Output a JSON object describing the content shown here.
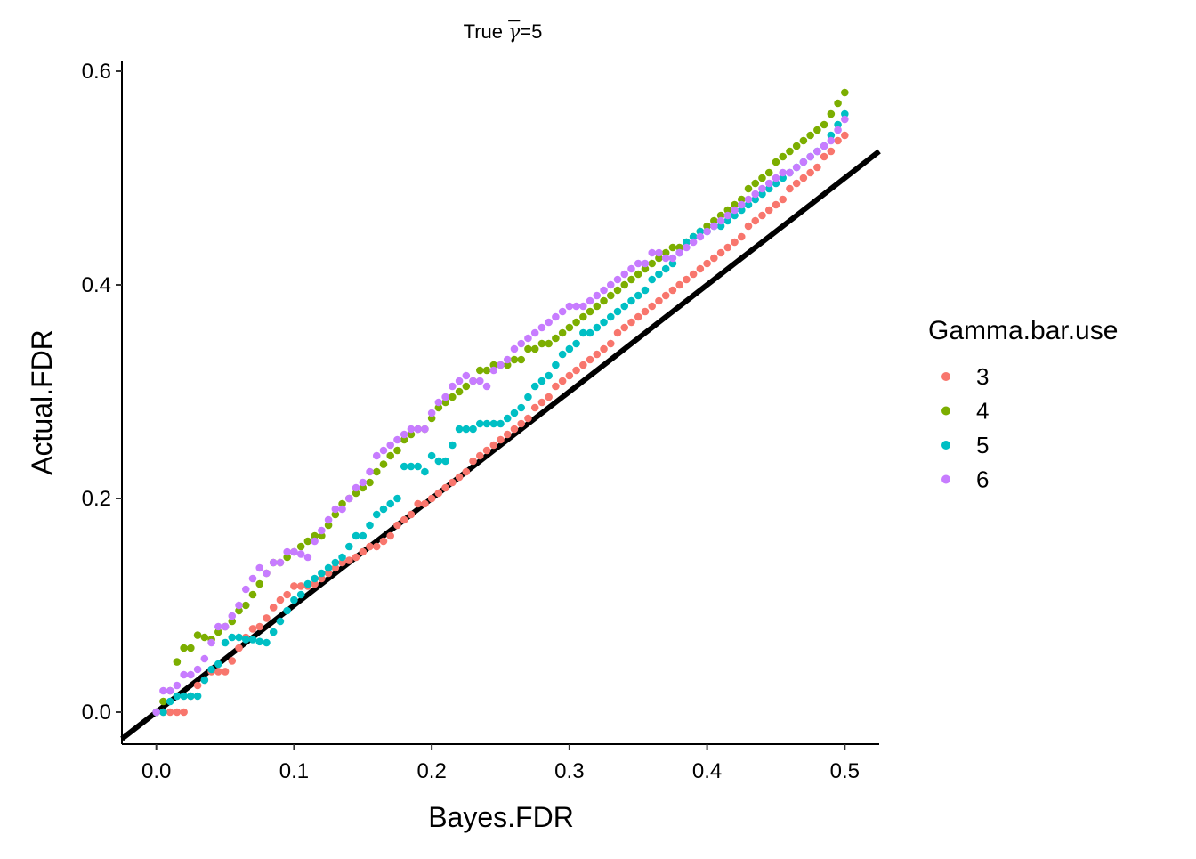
{
  "chart_data": {
    "type": "scatter",
    "title_prefix": "True ",
    "title_symbol": "γ",
    "title_suffix": "=5",
    "xlabel": "Bayes.FDR",
    "ylabel": "Actual.FDR",
    "xlim": [
      -0.025,
      0.525
    ],
    "ylim": [
      -0.03,
      0.61
    ],
    "x_ticks": [
      "0.0",
      "0.1",
      "0.2",
      "0.3",
      "0.4",
      "0.5"
    ],
    "y_ticks": [
      "0.0",
      "0.2",
      "0.4",
      "0.6"
    ],
    "grid": false,
    "legend": {
      "title": "Gamma.bar.use",
      "position": "right"
    },
    "reference_line": {
      "slope": 1,
      "intercept": 0,
      "color": "#000000"
    },
    "series": [
      {
        "name": "3",
        "color": "#F8766D",
        "x": [
          0,
          0.005,
          0.01,
          0.015,
          0.02,
          0.025,
          0.03,
          0.035,
          0.04,
          0.045,
          0.05,
          0.055,
          0.06,
          0.065,
          0.07,
          0.075,
          0.08,
          0.085,
          0.09,
          0.095,
          0.1,
          0.105,
          0.11,
          0.115,
          0.12,
          0.125,
          0.13,
          0.135,
          0.14,
          0.145,
          0.15,
          0.155,
          0.16,
          0.165,
          0.17,
          0.175,
          0.18,
          0.185,
          0.19,
          0.195,
          0.2,
          0.205,
          0.21,
          0.215,
          0.22,
          0.225,
          0.23,
          0.235,
          0.24,
          0.245,
          0.25,
          0.255,
          0.26,
          0.265,
          0.27,
          0.275,
          0.28,
          0.285,
          0.29,
          0.295,
          0.3,
          0.305,
          0.31,
          0.315,
          0.32,
          0.325,
          0.33,
          0.335,
          0.34,
          0.345,
          0.35,
          0.355,
          0.36,
          0.365,
          0.37,
          0.375,
          0.38,
          0.385,
          0.39,
          0.395,
          0.4,
          0.405,
          0.41,
          0.415,
          0.42,
          0.425,
          0.43,
          0.435,
          0.44,
          0.445,
          0.45,
          0.455,
          0.46,
          0.465,
          0.47,
          0.475,
          0.48,
          0.485,
          0.49,
          0.495,
          0.5
        ],
        "y": [
          0,
          0,
          0,
          0,
          0,
          0.015,
          0.025,
          0.03,
          0.038,
          0.038,
          0.038,
          0.048,
          0.06,
          0.07,
          0.078,
          0.08,
          0.088,
          0.098,
          0.105,
          0.11,
          0.118,
          0.118,
          0.118,
          0.12,
          0.125,
          0.13,
          0.135,
          0.14,
          0.142,
          0.145,
          0.15,
          0.155,
          0.155,
          0.16,
          0.165,
          0.175,
          0.18,
          0.185,
          0.195,
          0.195,
          0.2,
          0.205,
          0.21,
          0.215,
          0.22,
          0.225,
          0.235,
          0.24,
          0.245,
          0.25,
          0.255,
          0.26,
          0.265,
          0.27,
          0.275,
          0.285,
          0.29,
          0.295,
          0.305,
          0.31,
          0.315,
          0.32,
          0.325,
          0.33,
          0.335,
          0.34,
          0.345,
          0.355,
          0.36,
          0.365,
          0.37,
          0.375,
          0.38,
          0.385,
          0.39,
          0.395,
          0.4,
          0.405,
          0.41,
          0.415,
          0.42,
          0.425,
          0.43,
          0.435,
          0.44,
          0.445,
          0.455,
          0.46,
          0.465,
          0.47,
          0.475,
          0.48,
          0.49,
          0.495,
          0.5,
          0.505,
          0.51,
          0.52,
          0.525,
          0.535,
          0.54
        ]
      },
      {
        "name": "4",
        "color": "#7CAE00",
        "x": [
          0,
          0.005,
          0.01,
          0.015,
          0.02,
          0.025,
          0.03,
          0.035,
          0.04,
          0.045,
          0.05,
          0.055,
          0.06,
          0.065,
          0.07,
          0.075,
          0.08,
          0.085,
          0.09,
          0.095,
          0.1,
          0.105,
          0.11,
          0.115,
          0.12,
          0.125,
          0.13,
          0.135,
          0.14,
          0.145,
          0.15,
          0.155,
          0.16,
          0.165,
          0.17,
          0.175,
          0.18,
          0.185,
          0.19,
          0.195,
          0.2,
          0.205,
          0.21,
          0.215,
          0.22,
          0.225,
          0.23,
          0.235,
          0.24,
          0.245,
          0.25,
          0.255,
          0.26,
          0.265,
          0.27,
          0.275,
          0.28,
          0.285,
          0.29,
          0.295,
          0.3,
          0.305,
          0.31,
          0.315,
          0.32,
          0.325,
          0.33,
          0.335,
          0.34,
          0.345,
          0.35,
          0.355,
          0.36,
          0.365,
          0.37,
          0.375,
          0.38,
          0.385,
          0.39,
          0.395,
          0.4,
          0.405,
          0.41,
          0.415,
          0.42,
          0.425,
          0.43,
          0.435,
          0.44,
          0.445,
          0.45,
          0.455,
          0.46,
          0.465,
          0.47,
          0.475,
          0.48,
          0.485,
          0.49,
          0.495,
          0.5
        ],
        "y": [
          0,
          0.01,
          0.02,
          0.047,
          0.06,
          0.06,
          0.072,
          0.07,
          0.068,
          0.075,
          0.08,
          0.085,
          0.095,
          0.1,
          0.11,
          0.12,
          0.13,
          0.14,
          0.14,
          0.145,
          0.15,
          0.155,
          0.16,
          0.165,
          0.165,
          0.175,
          0.185,
          0.195,
          0.2,
          0.205,
          0.21,
          0.215,
          0.225,
          0.232,
          0.24,
          0.245,
          0.255,
          0.26,
          0.265,
          0.265,
          0.275,
          0.285,
          0.29,
          0.295,
          0.3,
          0.305,
          0.31,
          0.32,
          0.32,
          0.325,
          0.325,
          0.325,
          0.33,
          0.33,
          0.34,
          0.34,
          0.345,
          0.345,
          0.35,
          0.355,
          0.36,
          0.365,
          0.37,
          0.375,
          0.38,
          0.385,
          0.39,
          0.395,
          0.4,
          0.405,
          0.41,
          0.415,
          0.42,
          0.425,
          0.43,
          0.435,
          0.435,
          0.44,
          0.445,
          0.45,
          0.455,
          0.46,
          0.465,
          0.47,
          0.475,
          0.48,
          0.49,
          0.495,
          0.5,
          0.505,
          0.515,
          0.52,
          0.525,
          0.53,
          0.535,
          0.54,
          0.545,
          0.55,
          0.56,
          0.57,
          0.58
        ]
      },
      {
        "name": "5",
        "color": "#00BFC4",
        "x": [
          0,
          0.005,
          0.01,
          0.015,
          0.02,
          0.025,
          0.03,
          0.035,
          0.04,
          0.045,
          0.05,
          0.055,
          0.06,
          0.065,
          0.07,
          0.075,
          0.08,
          0.085,
          0.09,
          0.095,
          0.1,
          0.105,
          0.11,
          0.115,
          0.12,
          0.125,
          0.13,
          0.135,
          0.14,
          0.145,
          0.15,
          0.155,
          0.16,
          0.165,
          0.17,
          0.175,
          0.18,
          0.185,
          0.19,
          0.195,
          0.2,
          0.205,
          0.21,
          0.215,
          0.22,
          0.225,
          0.23,
          0.235,
          0.24,
          0.245,
          0.25,
          0.255,
          0.26,
          0.265,
          0.27,
          0.275,
          0.28,
          0.285,
          0.29,
          0.295,
          0.3,
          0.305,
          0.31,
          0.315,
          0.32,
          0.325,
          0.33,
          0.335,
          0.34,
          0.345,
          0.35,
          0.355,
          0.36,
          0.365,
          0.37,
          0.375,
          0.38,
          0.385,
          0.39,
          0.395,
          0.4,
          0.405,
          0.41,
          0.415,
          0.42,
          0.425,
          0.43,
          0.435,
          0.44,
          0.445,
          0.45,
          0.455,
          0.46,
          0.465,
          0.47,
          0.475,
          0.48,
          0.485,
          0.49,
          0.495,
          0.5
        ],
        "y": [
          0,
          0,
          0.01,
          0.015,
          0.015,
          0.015,
          0.015,
          0.03,
          0.04,
          0.045,
          0.065,
          0.07,
          0.07,
          0.068,
          0.068,
          0.066,
          0.065,
          0.075,
          0.085,
          0.095,
          0.105,
          0.11,
          0.12,
          0.125,
          0.13,
          0.135,
          0.14,
          0.145,
          0.155,
          0.165,
          0.165,
          0.175,
          0.185,
          0.19,
          0.195,
          0.2,
          0.23,
          0.23,
          0.23,
          0.225,
          0.24,
          0.235,
          0.235,
          0.25,
          0.265,
          0.265,
          0.265,
          0.27,
          0.27,
          0.27,
          0.27,
          0.275,
          0.28,
          0.285,
          0.295,
          0.305,
          0.31,
          0.315,
          0.325,
          0.335,
          0.34,
          0.345,
          0.355,
          0.355,
          0.36,
          0.365,
          0.37,
          0.375,
          0.38,
          0.385,
          0.39,
          0.395,
          0.405,
          0.41,
          0.415,
          0.42,
          0.43,
          0.44,
          0.445,
          0.45,
          0.45,
          0.455,
          0.455,
          0.46,
          0.465,
          0.47,
          0.475,
          0.48,
          0.485,
          0.49,
          0.495,
          0.5,
          0.505,
          0.51,
          0.515,
          0.52,
          0.525,
          0.53,
          0.54,
          0.55,
          0.56
        ]
      },
      {
        "name": "6",
        "color": "#C77CFF",
        "x": [
          0,
          0.005,
          0.01,
          0.015,
          0.02,
          0.025,
          0.03,
          0.035,
          0.04,
          0.045,
          0.05,
          0.055,
          0.06,
          0.065,
          0.07,
          0.075,
          0.08,
          0.085,
          0.09,
          0.095,
          0.1,
          0.105,
          0.11,
          0.115,
          0.12,
          0.125,
          0.13,
          0.135,
          0.14,
          0.145,
          0.15,
          0.155,
          0.16,
          0.165,
          0.17,
          0.175,
          0.18,
          0.185,
          0.19,
          0.195,
          0.2,
          0.205,
          0.21,
          0.215,
          0.22,
          0.225,
          0.23,
          0.235,
          0.24,
          0.245,
          0.25,
          0.255,
          0.26,
          0.265,
          0.27,
          0.275,
          0.28,
          0.285,
          0.29,
          0.295,
          0.3,
          0.305,
          0.31,
          0.315,
          0.32,
          0.325,
          0.33,
          0.335,
          0.34,
          0.345,
          0.35,
          0.355,
          0.36,
          0.365,
          0.37,
          0.375,
          0.38,
          0.385,
          0.39,
          0.395,
          0.4,
          0.405,
          0.41,
          0.415,
          0.42,
          0.425,
          0.43,
          0.435,
          0.44,
          0.445,
          0.45,
          0.455,
          0.46,
          0.465,
          0.47,
          0.475,
          0.48,
          0.485,
          0.49,
          0.495,
          0.5
        ],
        "y": [
          0,
          0.02,
          0.02,
          0.025,
          0.035,
          0.035,
          0.04,
          0.05,
          0.065,
          0.08,
          0.08,
          0.09,
          0.1,
          0.115,
          0.125,
          0.135,
          0.13,
          0.14,
          0.14,
          0.15,
          0.15,
          0.148,
          0.145,
          0.16,
          0.17,
          0.18,
          0.19,
          0.19,
          0.2,
          0.21,
          0.215,
          0.225,
          0.24,
          0.245,
          0.25,
          0.255,
          0.26,
          0.265,
          0.265,
          0.265,
          0.28,
          0.29,
          0.295,
          0.305,
          0.31,
          0.315,
          0.31,
          0.31,
          0.305,
          0.32,
          0.325,
          0.33,
          0.34,
          0.345,
          0.35,
          0.355,
          0.36,
          0.365,
          0.37,
          0.375,
          0.38,
          0.38,
          0.38,
          0.385,
          0.39,
          0.395,
          0.4,
          0.405,
          0.41,
          0.415,
          0.42,
          0.42,
          0.43,
          0.43,
          0.425,
          0.425,
          0.43,
          0.435,
          0.44,
          0.445,
          0.45,
          0.455,
          0.46,
          0.465,
          0.47,
          0.475,
          0.48,
          0.485,
          0.49,
          0.495,
          0.5,
          0.505,
          0.505,
          0.51,
          0.515,
          0.52,
          0.525,
          0.53,
          0.535,
          0.545,
          0.555
        ]
      }
    ]
  }
}
